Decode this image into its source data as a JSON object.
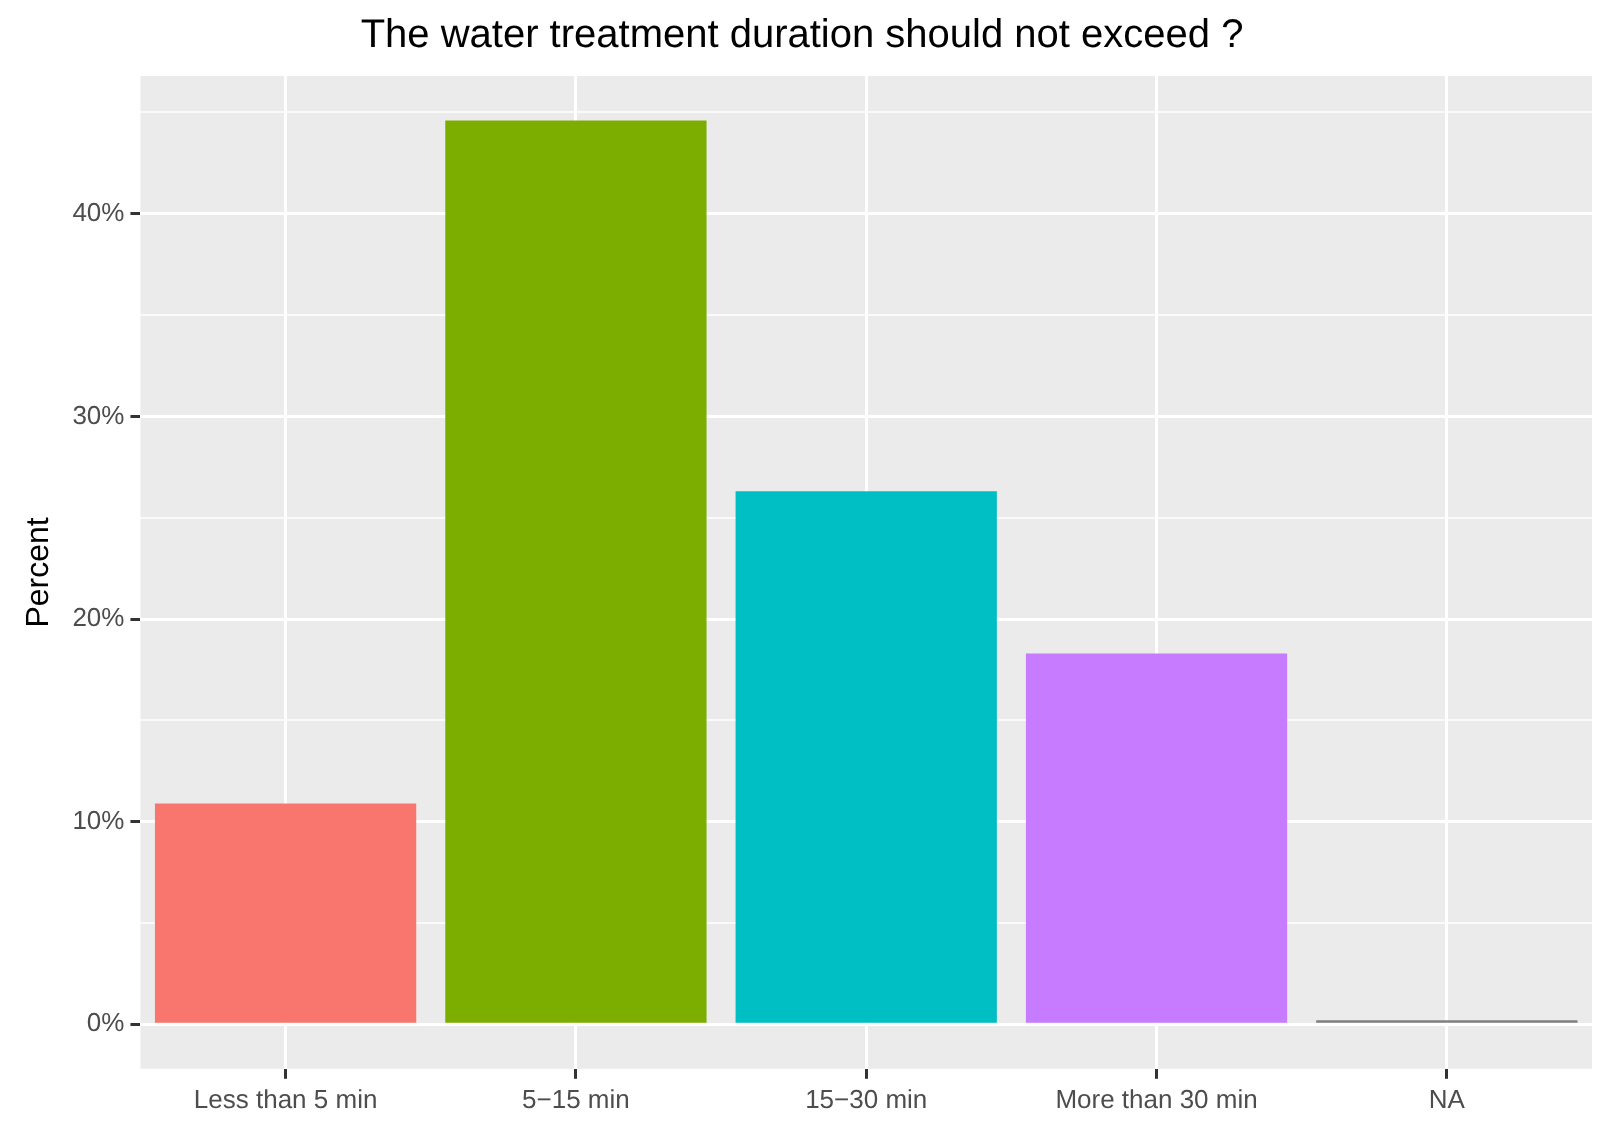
{
  "chart_data": {
    "type": "bar",
    "title": "The water treatment duration should not exceed ?",
    "ylabel": "Percent",
    "categories": [
      "Less than 5 min",
      "5−15 min",
      "15−30 min",
      "More than 30 min",
      "NA"
    ],
    "values": [
      10.9,
      44.6,
      26.3,
      18.3,
      0.2
    ],
    "colors": [
      "#f8766d",
      "#7cae00",
      "#00bfc4",
      "#c77cff",
      "#7f7f7f"
    ],
    "ylim": [
      -2.2,
      46.8
    ],
    "yticks": [
      {
        "value": 0,
        "label": "0%"
      },
      {
        "value": 5,
        "label": null
      },
      {
        "value": 10,
        "label": "10%"
      },
      {
        "value": 15,
        "label": null
      },
      {
        "value": 20,
        "label": "20%"
      },
      {
        "value": 25,
        "label": null
      },
      {
        "value": 30,
        "label": "30%"
      },
      {
        "value": 35,
        "label": null
      },
      {
        "value": 40,
        "label": "40%"
      },
      {
        "value": 45,
        "label": null
      }
    ],
    "grid": true,
    "legend": false
  }
}
